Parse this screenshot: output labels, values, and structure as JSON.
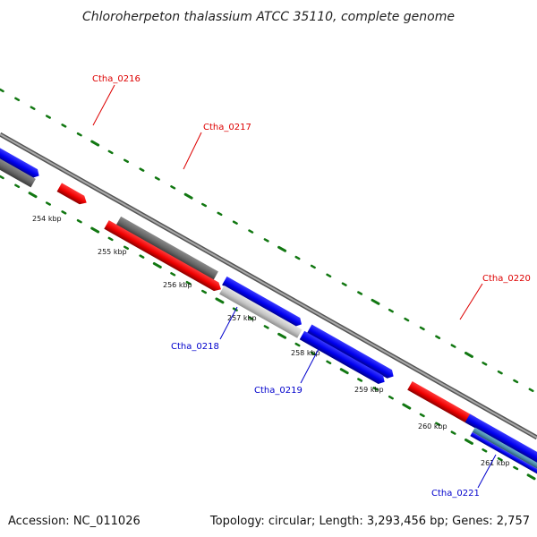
{
  "title": "Chloroherpeton thalassium ATCC 35110, complete genome",
  "footer": {
    "accession": "Accession: NC_011026",
    "stats": "Topology: circular; Length: 3,293,456 bp; Genes: 2,757"
  },
  "ticks": [
    "254 kbp",
    "255 kbp",
    "256 kbp",
    "257 kbp",
    "258 kbp",
    "259 kbp",
    "260 kbp",
    "261 kbp"
  ],
  "gene_labels": {
    "ctha_0216": "Ctha_0216",
    "ctha_0217": "Ctha_0217",
    "ctha_0218": "Ctha_0218",
    "ctha_0219": "Ctha_0219",
    "ctha_0220": "Ctha_0220",
    "ctha_0221": "Ctha_0221"
  },
  "colors": {
    "red": "#ee0000",
    "blue": "#0000ee",
    "gray": "#666666",
    "light_gray": "#bbbbbb",
    "teal": "#4a8aa8",
    "green": "#117711",
    "backbone": "#808080"
  }
}
